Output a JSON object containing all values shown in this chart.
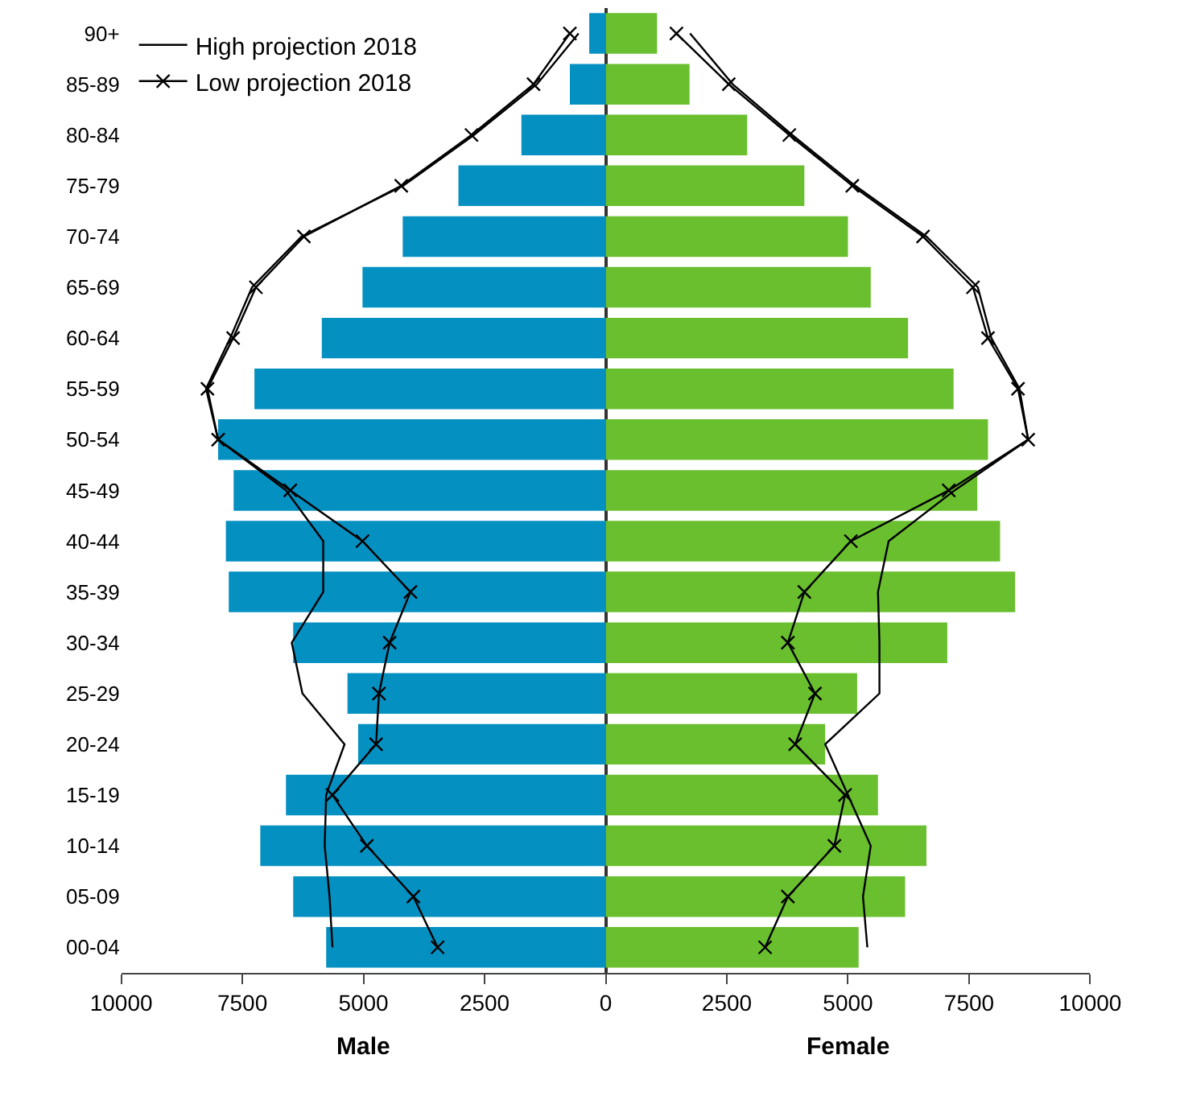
{
  "chart_data": {
    "type": "bar",
    "orientation": "horizontal",
    "stacked": true,
    "legend": "top left",
    "annotations": [
      "Male",
      "Female"
    ],
    "categories": [
      "90+",
      "85-89",
      "80-84",
      "75-79",
      "70-74",
      "65-69",
      "60-64",
      "55-59",
      "50-54",
      "45-49",
      "40-44",
      "35-39",
      "30-34",
      "25-29",
      "20-24",
      "15-19",
      "10-14",
      "05-09",
      "00-04"
    ],
    "xlim": [
      -10000,
      10000
    ],
    "xticks": [
      {
        "value": -10000,
        "label": "10000"
      },
      {
        "value": -7500,
        "label": "7500"
      },
      {
        "value": -5000,
        "label": "5000"
      },
      {
        "value": -2500,
        "label": "2500"
      },
      0,
      2500,
      5000,
      7500,
      10000
    ],
    "series": [
      {
        "color": "#0590c2",
        "values": [
          -340,
          -740,
          -1740,
          -3040,
          -4190,
          -5020,
          -5860,
          -7250,
          -8000,
          -7680,
          -7840,
          -7780,
          -6450,
          -5330,
          -5110,
          -6600,
          -7130,
          -6450,
          -5770
        ]
      },
      {
        "color": "#6abf2e",
        "values": [
          1060,
          1730,
          2920,
          4100,
          5000,
          5470,
          6240,
          7180,
          7890,
          7670,
          8140,
          8450,
          7050,
          5190,
          4530,
          5620,
          6620,
          6180,
          5220
        ]
      },
      {
        "type": "line",
        "name": "High projection 2018",
        "color": "#000000",
        "marker": "none",
        "values": [
          -560,
          -1420,
          -2720,
          -4180,
          -6280,
          -7300,
          -7750,
          -8250,
          -8000,
          -6600,
          -5830,
          -5830,
          -6480,
          -6260,
          -5390,
          -5770,
          -5800,
          -5700,
          -5640
        ]
      },
      {
        "type": "line",
        "name": "Low projection 2018",
        "color": "#000000",
        "marker": "cross",
        "values": [
          -740,
          -1490,
          -2770,
          -4220,
          -6230,
          -7220,
          -7690,
          -8220,
          -8000,
          -6510,
          -5020,
          -4030,
          -4460,
          -4680,
          -4740,
          -5640,
          -4930,
          -3970,
          -3470
        ]
      },
      {
        "type": "line",
        "color": "#000000",
        "marker": "none",
        "values": [
          1740,
          2620,
          3850,
          5150,
          6620,
          7680,
          7960,
          8540,
          8720,
          7200,
          5840,
          5620,
          5650,
          5650,
          4530,
          5000,
          5470,
          5310,
          5400
        ]
      },
      {
        "type": "line",
        "color": "#000000",
        "marker": "cross",
        "values": [
          1460,
          2540,
          3790,
          5090,
          6550,
          7580,
          7890,
          8510,
          8720,
          7080,
          5060,
          4100,
          3760,
          4320,
          3910,
          4940,
          4720,
          3760,
          3290
        ]
      }
    ]
  }
}
